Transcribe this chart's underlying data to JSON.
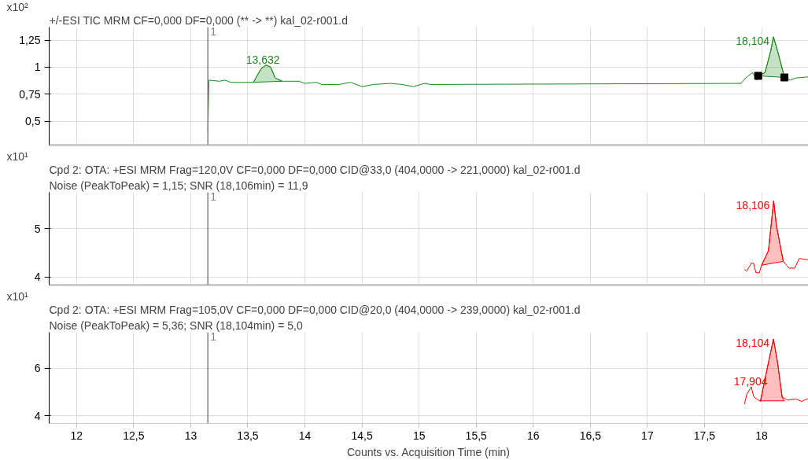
{
  "chart_data": [
    {
      "type": "line",
      "title": "+/-ESI TIC MRM CF=0,000 DF=0,000 (** -> **) kal_02-r001.d",
      "ylabel": "x10²",
      "xlim": [
        11.76,
        18.41
      ],
      "ylim": [
        0.28,
        1.37
      ],
      "xticks": [
        12,
        12.5,
        13,
        13.5,
        14,
        14.5,
        15,
        15.5,
        16,
        16.5,
        17,
        17.5,
        18
      ],
      "yticks": [
        {
          "value": 0.5,
          "label": "0,5"
        },
        {
          "value": 0.75,
          "label": "0,75"
        },
        1,
        {
          "value": 1.25,
          "label": "1,25"
        }
      ],
      "tick_labels": "y",
      "grid": true,
      "ref_lines": [
        {
          "axis": "x",
          "value": 13.15,
          "color": "#808080"
        }
      ],
      "annotations": [
        {
          "text": "1",
          "x": 13.15
        },
        {
          "text": "13,632",
          "x": 13.632,
          "y": 1.02
        },
        {
          "text": "18,104",
          "x": 18.104,
          "y": 1.28
        }
      ],
      "series": [
        {
          "color": "#1a8a1a",
          "x": [
            13.15,
            13.16,
            13.25,
            13.3,
            13.35,
            13.45,
            13.55,
            13.58,
            13.62,
            13.66,
            13.7,
            13.74,
            13.8,
            13.95,
            14.0,
            14.1,
            14.15,
            14.3,
            14.4,
            14.5,
            14.6,
            14.75,
            14.85,
            14.95,
            15.05,
            15.1,
            17.82,
            17.86,
            17.92,
            17.96,
            17.98,
            18.03,
            18.08,
            18.104,
            18.14,
            18.2,
            18.25,
            18.3,
            18.41
          ],
          "values": [
            0.41,
            0.88,
            0.87,
            0.88,
            0.86,
            0.86,
            0.86,
            0.92,
            0.99,
            1.02,
            1.0,
            0.9,
            0.87,
            0.87,
            0.85,
            0.86,
            0.84,
            0.84,
            0.86,
            0.82,
            0.84,
            0.85,
            0.84,
            0.82,
            0.85,
            0.84,
            0.85,
            0.9,
            0.95,
            0.88,
            0.92,
            0.95,
            1.15,
            1.28,
            1.15,
            0.91,
            0.88,
            0.9,
            0.91
          ]
        },
        {
          "type": "area",
          "color": "#1a8a1a",
          "x": [
            13.55,
            13.58,
            13.62,
            13.66,
            13.7,
            13.74,
            13.8
          ],
          "values": [
            0.86,
            0.92,
            0.99,
            1.02,
            1.0,
            0.9,
            0.87
          ]
        },
        {
          "type": "area",
          "color": "#1a8a1a",
          "x": [
            17.97,
            18.03,
            18.08,
            18.104,
            18.14,
            18.2
          ],
          "values": [
            0.92,
            0.95,
            1.15,
            1.28,
            1.15,
            0.905
          ]
        },
        {
          "type": "scatter",
          "marker": "square",
          "color": "#000000",
          "x": [
            17.97,
            18.2
          ],
          "values": [
            0.92,
            0.905
          ]
        }
      ]
    },
    {
      "type": "line",
      "title": "Cpd 2: OTA: +ESI MRM Frag=120,0V CF=0,000 DF=0,000 CID@33,0 (404,0000 -> 221,0000) kal_02-r001.d",
      "subtitle": "Noise (PeakToPeak) = 1,15; SNR (18,106min) = 11,9",
      "ylabel": "x10¹",
      "xlim": [
        11.76,
        18.41
      ],
      "ylim": [
        3.83,
        5.75
      ],
      "xticks": [
        12,
        12.5,
        13,
        13.5,
        14,
        14.5,
        15,
        15.5,
        16,
        16.5,
        17,
        17.5,
        18
      ],
      "yticks": [
        4,
        5
      ],
      "tick_labels": "y",
      "grid": true,
      "ref_lines": [
        {
          "axis": "x",
          "value": 13.15,
          "color": "#808080"
        }
      ],
      "annotations": [
        {
          "text": "1",
          "x": 13.15
        },
        {
          "text": "18,106",
          "x": 18.106,
          "y": 5.57
        }
      ],
      "series": [
        {
          "color": "#ff0000",
          "x": [
            17.85,
            17.87,
            17.91,
            17.93,
            17.95,
            17.98,
            18.0,
            18.06,
            18.106,
            18.13,
            18.19,
            18.24,
            18.29,
            18.33,
            18.41
          ],
          "values": [
            4.15,
            4.12,
            4.28,
            4.28,
            4.09,
            4.08,
            4.24,
            4.54,
            5.57,
            5.06,
            4.32,
            4.18,
            4.18,
            4.38,
            4.35
          ]
        },
        {
          "type": "area",
          "color": "#ff0000",
          "x": [
            18.0,
            18.06,
            18.106,
            18.13,
            18.19
          ],
          "values": [
            4.24,
            4.54,
            5.57,
            5.06,
            4.32
          ]
        }
      ]
    },
    {
      "type": "line",
      "title": "Cpd 2: OTA: +ESI MRM Frag=105,0V CF=0,000 DF=0,000 CID@20,0 (404,0000 -> 239,0000) kal_02-r001.d",
      "subtitle": "Noise (PeakToPeak) = 5,36; SNR (18,104min) = 5,0",
      "ylabel": "x10¹",
      "xlabel": "Counts vs. Acquisition Time (min)",
      "xlim": [
        11.76,
        18.41
      ],
      "ylim": [
        3.67,
        7.51
      ],
      "xticks": [
        12,
        {
          "value": 12.5,
          "label": "12,5"
        },
        13,
        {
          "value": 13.5,
          "label": "13,5"
        },
        14,
        {
          "value": 14.5,
          "label": "14,5"
        },
        15,
        {
          "value": 15.5,
          "label": "15,5"
        },
        16,
        {
          "value": 16.5,
          "label": "16,5"
        },
        17,
        {
          "value": 17.5,
          "label": "17,5"
        },
        18
      ],
      "yticks": [
        4,
        6
      ],
      "grid": true,
      "ref_lines": [
        {
          "axis": "x",
          "value": 13.15,
          "color": "#808080"
        }
      ],
      "annotations": [
        {
          "text": "1",
          "x": 13.15
        },
        {
          "text": "17,904",
          "x": 17.904,
          "y": 5.21
        },
        {
          "text": "18,104",
          "x": 18.104,
          "y": 7.22
        }
      ],
      "series": [
        {
          "color": "#ff0000",
          "x": [
            17.85,
            17.87,
            17.91,
            17.93,
            17.96,
            17.99,
            18.03,
            18.06,
            18.104,
            18.14,
            18.18,
            18.23,
            18.3,
            18.35,
            18.41
          ],
          "values": [
            4.48,
            4.89,
            5.21,
            4.81,
            4.69,
            4.6,
            5.54,
            6.23,
            7.22,
            6.24,
            4.78,
            4.65,
            4.7,
            4.6,
            4.72
          ]
        },
        {
          "type": "area",
          "color": "#ff0000",
          "x": [
            17.99,
            18.03,
            18.06,
            18.104,
            18.14,
            18.18,
            18.2
          ],
          "values": [
            4.62,
            5.54,
            6.23,
            7.22,
            6.24,
            4.78,
            4.62
          ]
        }
      ]
    }
  ]
}
